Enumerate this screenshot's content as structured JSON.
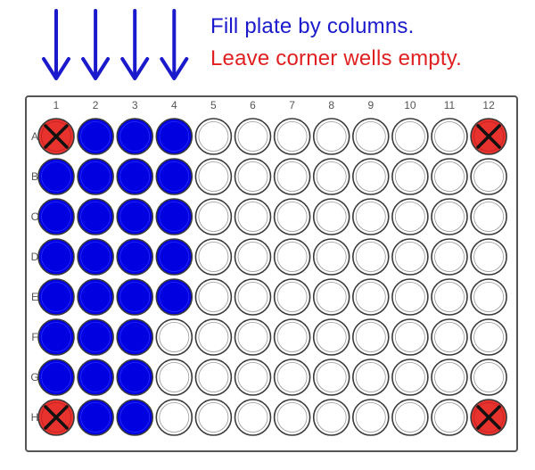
{
  "instructions": {
    "line1": "Fill plate by columns.",
    "line1_color": "#1a1acc",
    "line2": "Leave corner wells empty.",
    "line2_color": "#e02020"
  },
  "plate": {
    "column_labels": [
      "1",
      "2",
      "3",
      "4",
      "5",
      "6",
      "7",
      "8",
      "9",
      "10",
      "11",
      "12"
    ],
    "row_labels": [
      "A",
      "B",
      "C",
      "D",
      "E",
      "F",
      "G",
      "H"
    ],
    "arrow_columns": [
      "1",
      "2",
      "3",
      "4"
    ],
    "arrow_color": "#1a1acc",
    "filled_wells": {
      "1": [
        "B",
        "C",
        "D",
        "E",
        "F",
        "G"
      ],
      "2": [
        "A",
        "B",
        "C",
        "D",
        "E",
        "F",
        "G",
        "H"
      ],
      "3": [
        "A",
        "B",
        "C",
        "D",
        "E",
        "F",
        "G",
        "H"
      ],
      "4": [
        "A",
        "B",
        "C",
        "D",
        "E"
      ]
    },
    "excluded_wells": [
      "A1",
      "A12",
      "H1",
      "H12"
    ],
    "fill_color": "#0000e0",
    "excluded_color": "#e8322e",
    "empty_color": "#ffffff"
  }
}
